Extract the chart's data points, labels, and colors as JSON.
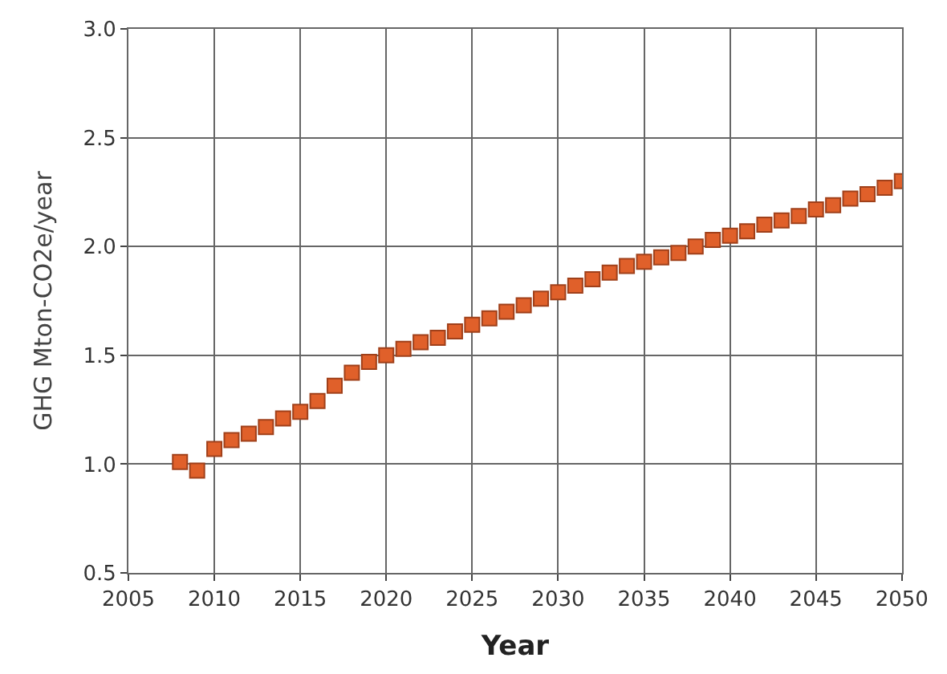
{
  "chart_data": {
    "type": "scatter",
    "xlabel": "Year",
    "ylabel": "GHG Mton-CO2e/year",
    "x": [
      2008,
      2009,
      2010,
      2011,
      2012,
      2013,
      2014,
      2015,
      2016,
      2017,
      2018,
      2019,
      2020,
      2021,
      2022,
      2023,
      2024,
      2025,
      2026,
      2027,
      2028,
      2029,
      2030,
      2031,
      2032,
      2033,
      2034,
      2035,
      2036,
      2037,
      2038,
      2039,
      2040,
      2041,
      2042,
      2043,
      2044,
      2045,
      2046,
      2047,
      2048,
      2049,
      2050
    ],
    "series": [
      {
        "color": "#e0602a",
        "values": [
          1.01,
          0.97,
          1.07,
          1.11,
          1.14,
          1.17,
          1.21,
          1.24,
          1.29,
          1.36,
          1.42,
          1.47,
          1.5,
          1.53,
          1.56,
          1.58,
          1.61,
          1.64,
          1.67,
          1.7,
          1.73,
          1.76,
          1.79,
          1.82,
          1.85,
          1.88,
          1.91,
          1.93,
          1.95,
          1.97,
          2.0,
          2.03,
          2.05,
          2.07,
          2.1,
          2.12,
          2.14,
          2.17,
          2.19,
          2.22,
          2.24,
          2.27,
          2.3
        ]
      }
    ],
    "xlim": [
      2005,
      2050
    ],
    "xticks": [
      2005,
      2010,
      2015,
      2020,
      2025,
      2030,
      2035,
      2040,
      2045,
      2050
    ],
    "ylim": [
      0.5,
      3.0
    ],
    "yticks": [
      {
        "value": 0.5,
        "label": "0.5"
      },
      {
        "value": 1.0,
        "label": "1.0"
      },
      {
        "value": 1.5,
        "label": "1.5"
      },
      {
        "value": 2.0,
        "label": "2.0"
      },
      {
        "value": 2.5,
        "label": "2.5"
      },
      {
        "value": 3.0,
        "label": "3.0"
      }
    ],
    "grid": true,
    "marker": "square"
  }
}
